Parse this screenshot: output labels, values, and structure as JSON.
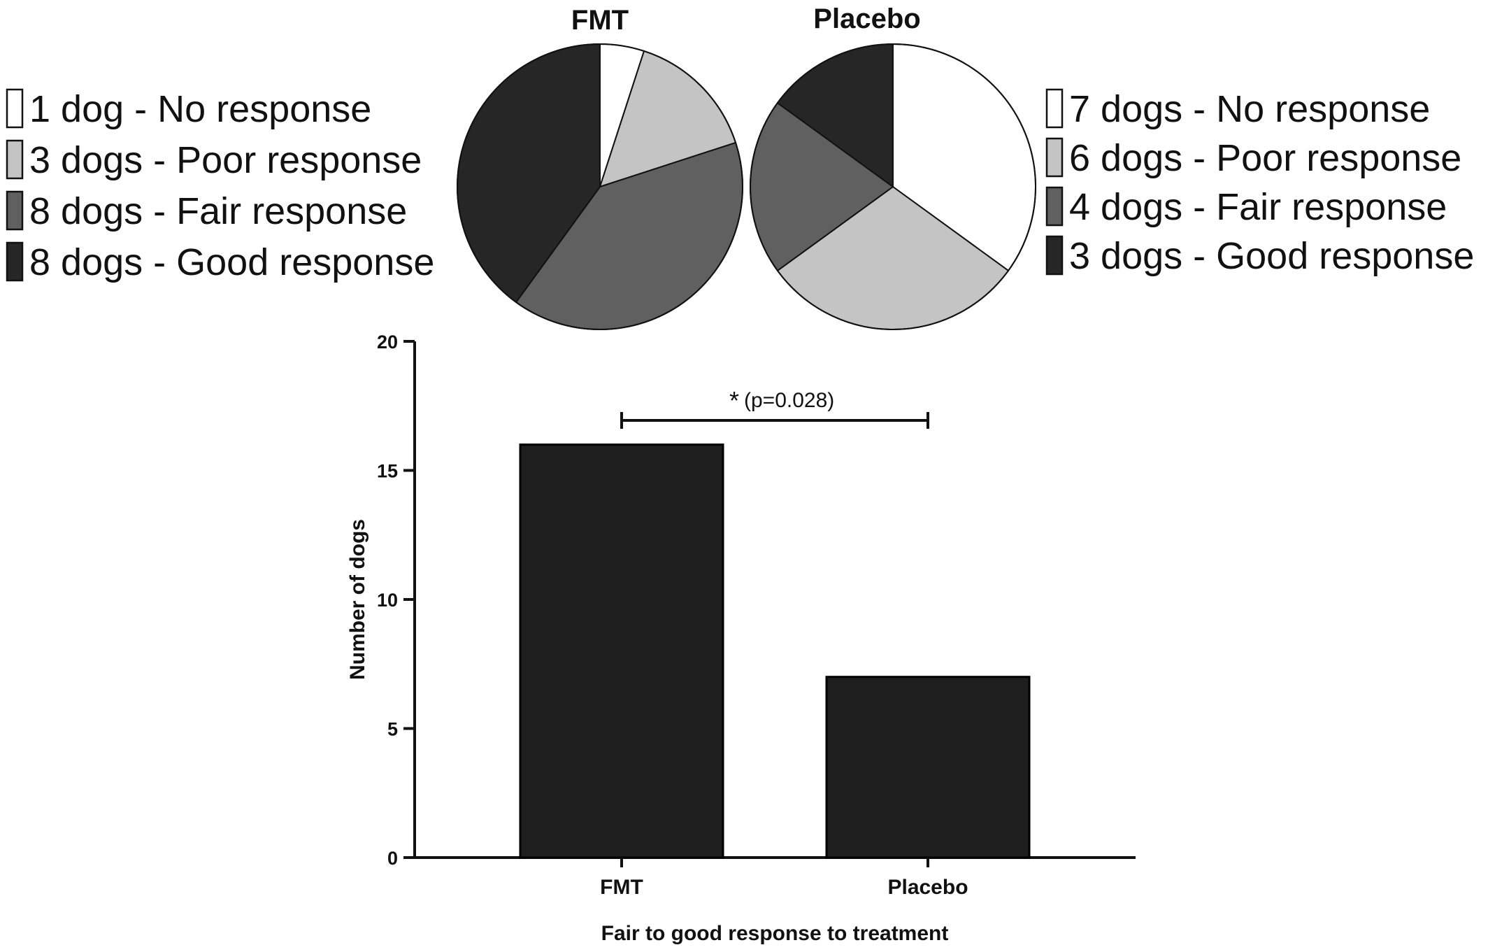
{
  "colors": {
    "no_response": "#ffffff",
    "poor_response": "#c4c4c4",
    "fair_response": "#606060",
    "good_response": "#262626",
    "bar_fill": "#1e1e1e",
    "outline": "#111111"
  },
  "chart_data": [
    {
      "type": "pie",
      "title": "FMT",
      "slices": [
        {
          "label": "1 dog - No response",
          "value": 1,
          "color_key": "no_response"
        },
        {
          "label": "3 dogs - Poor response",
          "value": 3,
          "color_key": "poor_response"
        },
        {
          "label": "8 dogs - Fair response",
          "value": 8,
          "color_key": "fair_response"
        },
        {
          "label": "8 dogs - Good response",
          "value": 8,
          "color_key": "good_response"
        }
      ],
      "legend_position": "left"
    },
    {
      "type": "pie",
      "title": "Placebo",
      "slices": [
        {
          "label": "7 dogs - No response",
          "value": 7,
          "color_key": "no_response"
        },
        {
          "label": "6 dogs - Poor response",
          "value": 6,
          "color_key": "poor_response"
        },
        {
          "label": "4 dogs - Fair response",
          "value": 4,
          "color_key": "fair_response"
        },
        {
          "label": "3 dogs - Good response",
          "value": 3,
          "color_key": "good_response"
        }
      ],
      "legend_position": "right"
    },
    {
      "type": "bar",
      "categories": [
        "FMT",
        "Placebo"
      ],
      "values": [
        16,
        7
      ],
      "xlabel": "Fair to good response to treatment",
      "ylabel": "Number of dogs",
      "ylim": [
        0,
        20
      ],
      "yticks": [
        "0",
        "5",
        "10",
        "15",
        "20"
      ],
      "grid": false,
      "annotation": {
        "symbol": "*",
        "text": "(p=0.028)",
        "between": [
          "FMT",
          "Placebo"
        ]
      }
    }
  ]
}
